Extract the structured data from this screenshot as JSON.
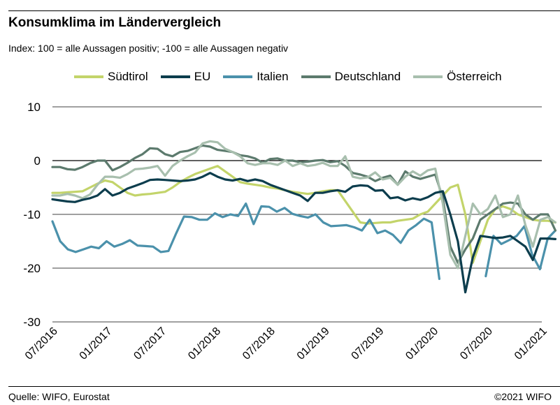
{
  "title": "Konsumklima im Ländervergleich",
  "subtitle": "Index: 100 = alle Aussagen positiv; -100 =  alle Aussagen negativ",
  "source": "Quelle: WIFO, Eurostat",
  "copyright": "©2021 WIFO",
  "chart_data": {
    "type": "line",
    "ylim": [
      -30,
      10
    ],
    "yticks": [
      "10",
      "0",
      "-10",
      "-20",
      "-30"
    ],
    "xticks": [
      "07/2016",
      "01/2017",
      "07/2017",
      "01/2018",
      "07/2018",
      "01/2019",
      "07/2019",
      "01/2020",
      "07/2020",
      "01/2021"
    ],
    "xstart": "2016-07",
    "xend": "2021-01",
    "legend_position": "top",
    "grid": "horizontal",
    "series": [
      {
        "name": "Südtirol",
        "color": "#c3d46a",
        "values": [
          -6,
          -6,
          -5.9,
          -5.8,
          -5.7,
          -5,
          -4.3,
          -3.7,
          -4,
          -5,
          -6,
          -6.5,
          -6.3,
          -6.2,
          -6,
          -5.8,
          -5,
          -4,
          -3.2,
          -2.5,
          -2,
          -1.5,
          -1,
          -2,
          -3,
          -4,
          -4.3,
          -4.5,
          -4.7,
          -5,
          -5.2,
          -5.5,
          -5.8,
          -6,
          -6.2,
          -6,
          -5.7,
          -5.5,
          -5.5,
          -7.5,
          -9.5,
          -11.5,
          -11.7,
          -11.6,
          -11.5,
          -11.5,
          -11.2,
          -11,
          -10.8,
          -10,
          -9.5,
          -8,
          -6.5,
          -5,
          -4.5,
          -10,
          -19,
          -15,
          -11,
          -9,
          -8.5,
          -9,
          -10,
          -10.5,
          -11,
          -11.2,
          -11.2,
          -11.5
        ]
      },
      {
        "name": "EU",
        "color": "#0c3d4d",
        "values": [
          -7.2,
          -7.4,
          -7.6,
          -7.7,
          -7.3,
          -7,
          -6.5,
          -5.3,
          -6.5,
          -6,
          -5.2,
          -4.7,
          -4.2,
          -3.6,
          -3.5,
          -3.6,
          -3.7,
          -3.8,
          -3.7,
          -3.5,
          -3,
          -2.3,
          -3,
          -3.5,
          -3.7,
          -3.4,
          -3.8,
          -3.5,
          -3.8,
          -4.5,
          -5,
          -5.5,
          -6,
          -6.5,
          -7.5,
          -6,
          -6,
          -5.7,
          -5.5,
          -5.8,
          -4.8,
          -4.6,
          -4.7,
          -5.6,
          -5.5,
          -7,
          -6.8,
          -7.4,
          -7,
          -7.3,
          -6.8,
          -6,
          -5.7,
          -10,
          -15,
          -24.5,
          -18,
          -14,
          -14.2,
          -14.4,
          -14.3,
          -14,
          -15,
          -16,
          -18.5,
          -14.5,
          -14.5,
          -14.6
        ]
      },
      {
        "name": "Italien",
        "color": "#4b91ab",
        "values": [
          -11.3,
          -15,
          -16.5,
          -17,
          -16.5,
          -16,
          -16.3,
          -15,
          -16,
          -15.5,
          -14.8,
          -15.8,
          -15.9,
          -16,
          -17,
          -16.8,
          -13.5,
          -10.4,
          -10.5,
          -11,
          -11,
          -9.8,
          -10.5,
          -10,
          -10.3,
          -8,
          -11.8,
          -8.5,
          -8.6,
          -9.5,
          -8.8,
          -9.9,
          -10.3,
          -10.6,
          -10,
          -11.5,
          -12.2,
          -12.1,
          -12,
          -12.4,
          -13,
          -11,
          -13.5,
          -13,
          -13.8,
          -15.3,
          -13,
          -12,
          -10.8,
          -11.5,
          -22,
          null,
          null,
          null,
          null,
          null,
          -21.5,
          -14,
          -15.5,
          -14.8,
          -14,
          -12.2,
          -17.5,
          -20.2,
          -14.5,
          -13
        ]
      },
      {
        "name": "Deutschland",
        "color": "#5c7a6d",
        "values": [
          -1.2,
          -1.2,
          -1.6,
          -1.7,
          -1.2,
          -0.5,
          0,
          0,
          -1.8,
          -1.2,
          -0.4,
          0.5,
          1.2,
          2.3,
          2.2,
          1.2,
          0.8,
          1.6,
          1.8,
          2.3,
          2.8,
          2.6,
          2,
          1.8,
          1.6,
          1,
          0.8,
          0.4,
          -0.4,
          0.3,
          0.4,
          0,
          0,
          -0.3,
          -0.2,
          0,
          0.1,
          -0.3,
          -0.1,
          -1,
          -2.3,
          -2.6,
          -3,
          -3.8,
          -3.2,
          -2.8,
          -4.5,
          -2,
          -3,
          -3.4,
          -3,
          -2.6,
          -7,
          -16,
          -19,
          -16.5,
          -14.5,
          -11,
          -10,
          -9,
          -8,
          -7.8,
          -8,
          -10,
          -11,
          -10,
          -10,
          -13
        ]
      },
      {
        "name": "Österreich",
        "color": "#a8bfae",
        "values": [
          -6.5,
          -6.5,
          -6.2,
          -6.5,
          -7,
          -6.3,
          -4.5,
          -3,
          -3,
          -3.2,
          -2.5,
          -1.6,
          -1.5,
          -1.3,
          -1,
          -2.8,
          -1,
          0,
          0.8,
          1.5,
          3.2,
          3.6,
          3.4,
          2.2,
          1.6,
          0.8,
          -0.5,
          -0.8,
          -0.5,
          -0.5,
          -0.8,
          0,
          -1,
          -0.5,
          -1,
          -0.8,
          -0.4,
          -1,
          -1,
          0.8,
          -3,
          -3.3,
          -3.1,
          -2.2,
          -3.5,
          -3.2,
          -4.5,
          -3,
          -2,
          -2.8,
          -1.8,
          -1.5,
          -8,
          -17.5,
          -20,
          -14,
          -8,
          -10,
          -9,
          -6.5,
          -10.5,
          -10,
          -6.5,
          -12,
          -16,
          -11,
          -10.5,
          -11.5
        ]
      }
    ]
  }
}
